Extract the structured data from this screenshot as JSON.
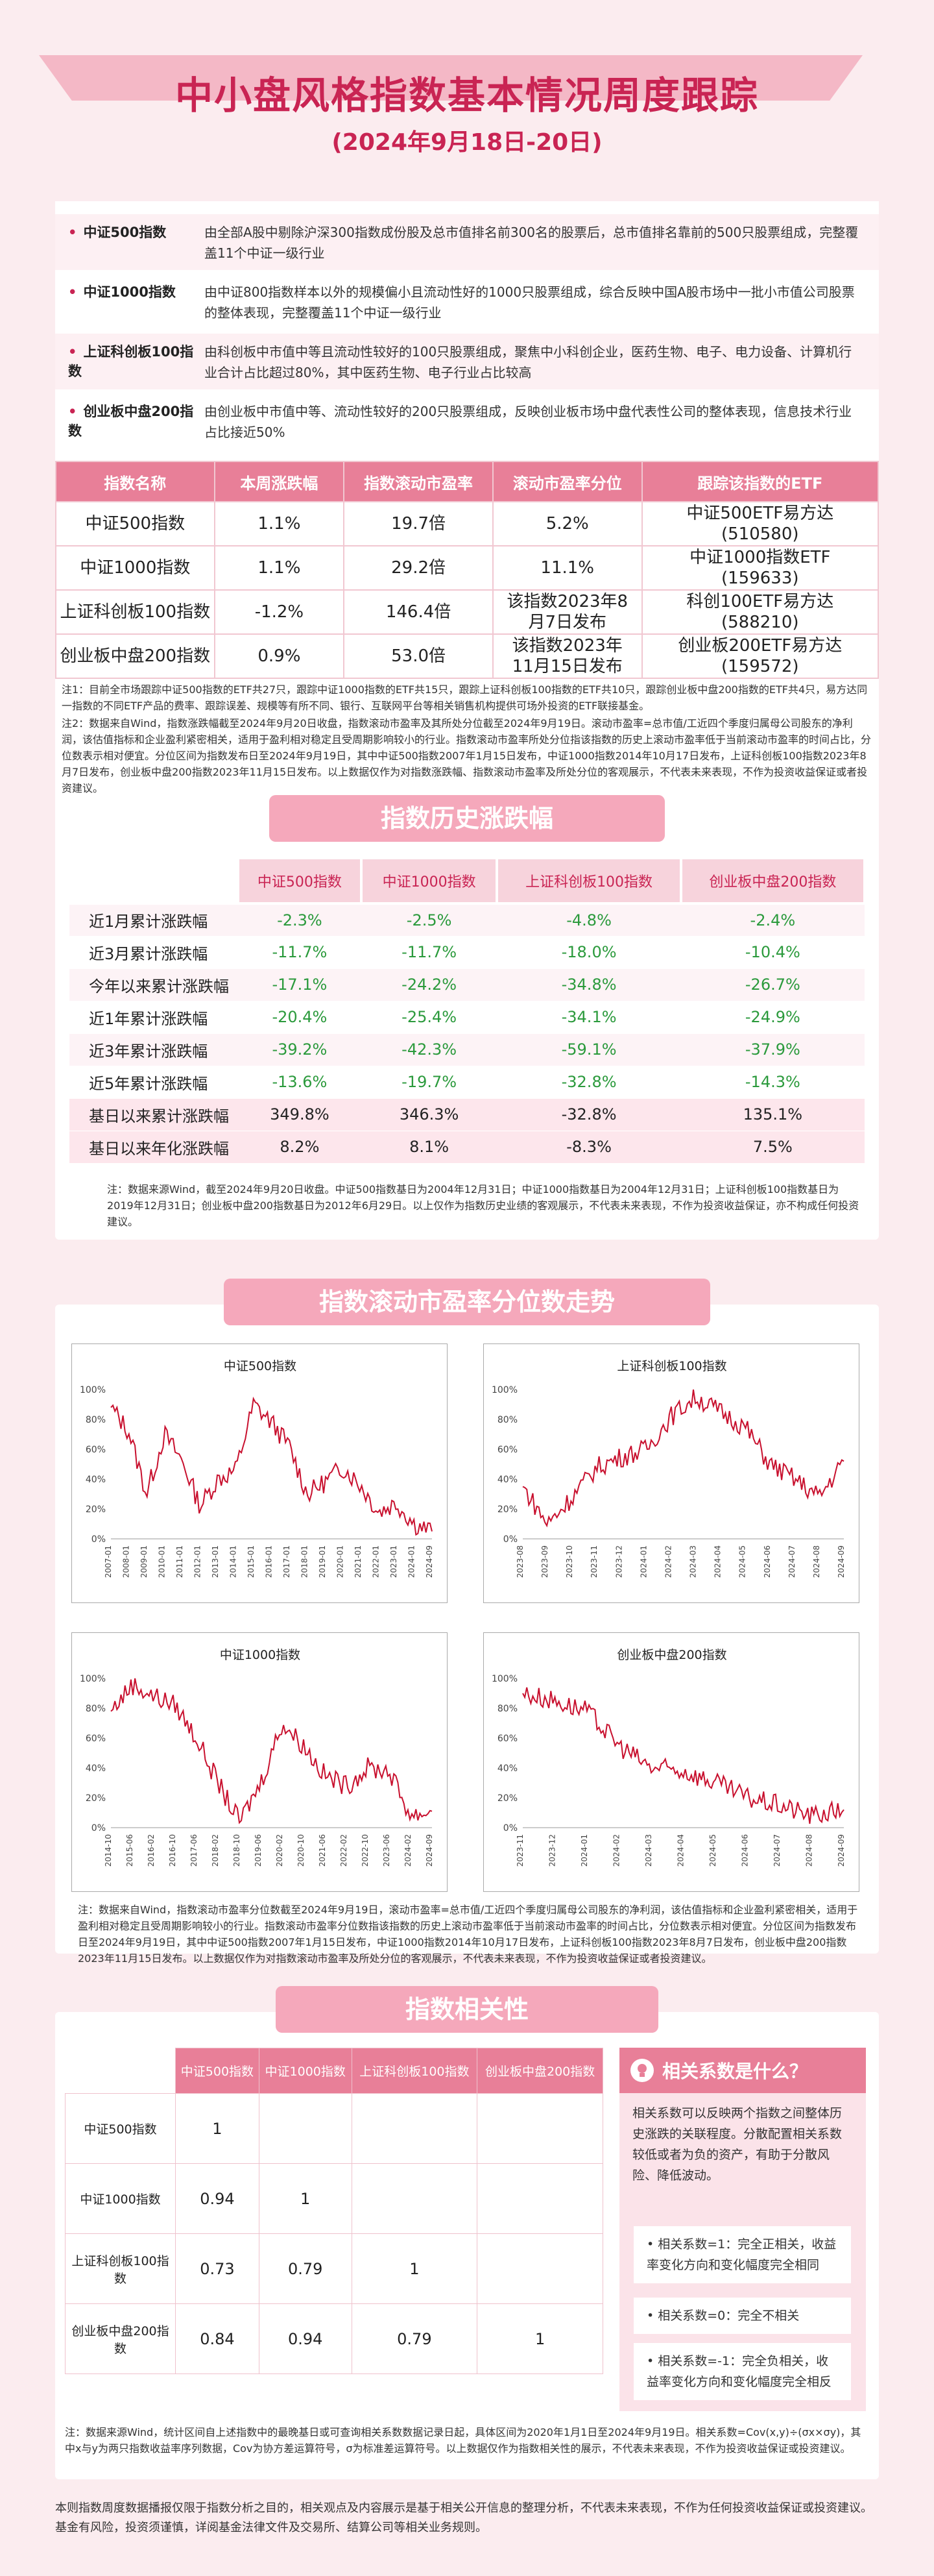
{
  "header": {
    "title": "中小盘风格指数基本情况周度跟踪",
    "subtitle": "(2024年9月18日-20日)"
  },
  "indices": [
    {
      "name": "中证500指数",
      "desc": "由全部A股中剔除沪深300指数成份股及总市值排名前300名的股票后，总市值排名靠前的500只股票组成，完整覆盖11个中证一级行业"
    },
    {
      "name": "中证1000指数",
      "desc": "由中证800指数样本以外的规模偏小且流动性好的1000只股票组成，综合反映中国A股市场中一批小市值公司股票的整体表现，完整覆盖11个中证一级行业"
    },
    {
      "name": "上证科创板100指数",
      "desc": "由科创板中市值中等且流动性较好的100只股票组成，聚焦中小科创企业，医药生物、电子、电力设备、计算机行业合计占比超过80%，其中医药生物、电子行业占比较高"
    },
    {
      "name": "创业板中盘200指数",
      "desc": "由创业板中市值中等、流动性较好的200只股票组成，反映创业板市场中盘代表性公司的整体表现，信息技术行业占比接近50%"
    }
  ],
  "weekly_table": {
    "headers": [
      "指数名称",
      "本周涨跌幅",
      "指数滚动市盈率",
      "滚动市盈率分位",
      "跟踪该指数的ETF"
    ],
    "rows": [
      {
        "name": "中证500指数",
        "chg": "1.1%",
        "pe": "19.7倍",
        "pct": "5.2%",
        "etf1": "中证500ETF易方达",
        "etf2": "(510580)"
      },
      {
        "name": "中证1000指数",
        "chg": "1.1%",
        "pe": "29.2倍",
        "pct": "11.1%",
        "etf1": "中证1000指数ETF",
        "etf2": "(159633)"
      },
      {
        "name": "上证科创板100指数",
        "chg": "-1.2%",
        "pe": "146.4倍",
        "pct": "该指数2023年8月7日发布",
        "etf1": "科创100ETF易方达",
        "etf2": "(588210)"
      },
      {
        "name": "创业板中盘200指数",
        "chg": "0.9%",
        "pe": "53.0倍",
        "pct": "该指数2023年11月15日发布",
        "etf1": "创业板200ETF易方达",
        "etf2": "(159572)"
      }
    ]
  },
  "note1": "注1：目前全市场跟踪中证500指数的ETF共27只，跟踪中证1000指数的ETF共15只，跟踪上证科创板100指数的ETF共10只，跟踪创业板中盘200指数的ETF共4只，易方达同一指数的不同ETF产品的费率、跟踪误差、规模等有所不同、银行、互联网平台等相关销售机构提供可场外投资的ETF联接基金。",
  "note2": "注2：数据来自Wind，指数涨跌幅截至2024年9月20日收盘，指数滚动市盈率及其所处分位截至2024年9月19日。滚动市盈率=总市值/工近四个季度归属母公司股东的净利润，该估值指标和企业盈利紧密相关，适用于盈利相对稳定且受周期影响较小的行业。指数滚动市盈率所处分位指该指数的历史上滚动市盈率低于当前滚动市盈率的时间占比，分位数表示相对便宜。分位区间为指数发布日至2024年9月19日，其中中证500指数2007年1月15日发布，中证1000指数2014年10月17日发布，上证科创板100指数2023年8月7日发布，创业板中盘200指数2023年11月15日发布。以上数据仅作为对指数涨跌幅、指数滚动市盈率及所处分位的客观展示，不代表未来表现，不作为投资收益保证或者投资建议。",
  "history": {
    "title": "指数历史涨跌幅",
    "headers": [
      "中证500指数",
      "中证1000指数",
      "上证科创板100指数",
      "创业板中盘200指数"
    ],
    "rows": [
      {
        "label": "近1月累计涨跌幅",
        "v": [
          "-2.3%",
          "-2.5%",
          "-4.8%",
          "-2.4%"
        ]
      },
      {
        "label": "近3月累计涨跌幅",
        "v": [
          "-11.7%",
          "-11.7%",
          "-18.0%",
          "-10.4%"
        ]
      },
      {
        "label": "今年以来累计涨跌幅",
        "v": [
          "-17.1%",
          "-24.2%",
          "-34.8%",
          "-26.7%"
        ]
      },
      {
        "label": "近1年累计涨跌幅",
        "v": [
          "-20.4%",
          "-25.4%",
          "-34.1%",
          "-24.9%"
        ]
      },
      {
        "label": "近3年累计涨跌幅",
        "v": [
          "-39.2%",
          "-42.3%",
          "-59.1%",
          "-37.9%"
        ]
      },
      {
        "label": "近5年累计涨跌幅",
        "v": [
          "-13.6%",
          "-19.7%",
          "-32.8%",
          "-14.3%"
        ]
      },
      {
        "label": "基日以来累计涨跌幅",
        "v": [
          "349.8%",
          "346.3%",
          "-32.8%",
          "135.1%"
        ]
      },
      {
        "label": "基日以来年化涨跌幅",
        "v": [
          "8.2%",
          "8.1%",
          "-8.3%",
          "7.5%"
        ]
      }
    ],
    "note": "注：数据来源Wind，截至2024年9月20日收盘。中证500指数基日为2004年12月31日；中证1000指数基日为2004年12月31日；上证科创板100指数基日为2019年12月31日；创业板中盘200指数基日为2012年6月29日。以上仅作为指数历史业绩的客观展示，不代表未来表现，不作为投资收益保证，亦不构成任何投资建议。"
  },
  "pe_section": {
    "title": "指数滚动市盈率分位数走势",
    "note": "注：数据来自Wind，指数滚动市盈率分位数截至2024年9月19日，滚动市盈率=总市值/工近四个季度归属母公司股东的净利润，该估值指标和企业盈利紧密相关，适用于盈利相对稳定且受周期影响较小的行业。指数滚动市盈率分位数指该指数的历史上滚动市盈率低于当前滚动市盈率的时间占比，分位数表示相对便宜。分位区间为指数发布日至2024年9月19日，其中中证500指数2007年1月15日发布，中证1000指数2014年10月17日发布，上证科创板100指数2023年8月7日发布，创业板中盘200指数2023年11月15日发布。以上数据仅作为对指数滚动市盈率及所处分位的客观展示，不代表未来表现，不作为投资收益保证或者投资建议。"
  },
  "chart_data": [
    {
      "type": "line",
      "title": "中证500指数",
      "ylim": [
        0,
        100
      ],
      "yticks": [
        "100%",
        "80%",
        "60%",
        "40%",
        "20%",
        "0%"
      ],
      "x": [
        "2007-01",
        "2008-01",
        "2009-01",
        "2010-01",
        "2011-01",
        "2012-01",
        "2013-01",
        "2014-01",
        "2015-01",
        "2016-01",
        "2017-01",
        "2018-01",
        "2019-01",
        "2020-01",
        "2021-01",
        "2022-01",
        "2023-01",
        "2024-01",
        "2024-09"
      ],
      "values": [
        88,
        72,
        30,
        70,
        52,
        22,
        40,
        46,
        90,
        78,
        62,
        30,
        38,
        48,
        36,
        18,
        24,
        10,
        5
      ]
    },
    {
      "type": "line",
      "title": "上证科创板100指数",
      "ylim": [
        0,
        100
      ],
      "yticks": [
        "100%",
        "80%",
        "60%",
        "40%",
        "20%",
        "0%"
      ],
      "x": [
        "2023-08",
        "2023-09",
        "2023-10",
        "2023-11",
        "2023-12",
        "2024-01",
        "2024-02",
        "2024-03",
        "2024-04",
        "2024-05",
        "2024-06",
        "2024-07",
        "2024-08",
        "2024-09"
      ],
      "values": [
        35,
        10,
        28,
        48,
        55,
        60,
        82,
        95,
        85,
        75,
        50,
        40,
        28,
        52
      ]
    },
    {
      "type": "line",
      "title": "中证1000指数",
      "ylim": [
        0,
        100
      ],
      "yticks": [
        "100%",
        "80%",
        "60%",
        "40%",
        "20%",
        "0%"
      ],
      "x": [
        "2014-10",
        "2015-06",
        "2016-02",
        "2016-10",
        "2017-06",
        "2018-02",
        "2018-10",
        "2019-06",
        "2020-02",
        "2020-10",
        "2021-06",
        "2022-02",
        "2022-10",
        "2023-06",
        "2024-02",
        "2024-09"
      ],
      "values": [
        78,
        96,
        88,
        82,
        60,
        30,
        4,
        30,
        70,
        55,
        35,
        28,
        40,
        38,
        8,
        11
      ]
    },
    {
      "type": "line",
      "title": "创业板中盘200指数",
      "ylim": [
        0,
        100
      ],
      "yticks": [
        "100%",
        "80%",
        "60%",
        "40%",
        "20%",
        "0%"
      ],
      "x": [
        "2023-11",
        "2023-12",
        "2024-01",
        "2024-02",
        "2024-03",
        "2024-04",
        "2024-05",
        "2024-06",
        "2024-07",
        "2024-08",
        "2024-09"
      ],
      "values": [
        90,
        85,
        78,
        55,
        40,
        38,
        30,
        20,
        15,
        8,
        12
      ]
    }
  ],
  "correlation": {
    "title": "指数相关性",
    "headers": [
      "中证500指数",
      "中证1000指数",
      "上证科创板100指数",
      "创业板中盘200指数"
    ],
    "rows": [
      {
        "label": "中证500指数",
        "v": [
          "1",
          "",
          "",
          ""
        ]
      },
      {
        "label": "中证1000指数",
        "v": [
          "0.94",
          "1",
          "",
          ""
        ]
      },
      {
        "label": "上证科创板100指数",
        "v": [
          "0.73",
          "0.79",
          "1",
          ""
        ]
      },
      {
        "label": "创业板中盘200指数",
        "v": [
          "0.84",
          "0.94",
          "0.79",
          "1"
        ]
      }
    ],
    "side_title": "相关系数是什么？",
    "side_intro": "相关系数可以反映两个指数之间整体历史涨跌的关联程度。分散配置相关系数较低或者为负的资产，有助于分散风险、降低波动。",
    "side_items": [
      "相关系数=1：完全正相关，收益率变化方向和变化幅度完全相同",
      "相关系数=0：完全不相关",
      "相关系数=-1：完全负相关，收益率变化方向和变化幅度完全相反"
    ],
    "note": "注：数据来源Wind，统计区间自上述指数中的最晚基日或可查询相关系数数据记录日起，具体区间为2020年1月1日至2024年9月19日。相关系数=Cov(x,y)÷(σx×σy)，其中x与y为两只指数收益率序列数据，Cov为协方差运算符号，σ为标准差运算符号。以上数据仅作为指数相关性的展示，不代表未来表现，不作为投资收益保证或投资建议。"
  },
  "footer": "本则指数周度数据播报仅限于指数分析之目的，相关观点及内容展示是基于相关公开信息的整理分析，不代表未来表现，不作为任何投资收益保证或投资建议。基金有风险，投资须谨慎，详阅基金法律文件及交易所、结算公司等相关业务规则。",
  "colors": {
    "accent": "#c92453",
    "header_bg": "#e87f98",
    "line": "#c8102e"
  }
}
